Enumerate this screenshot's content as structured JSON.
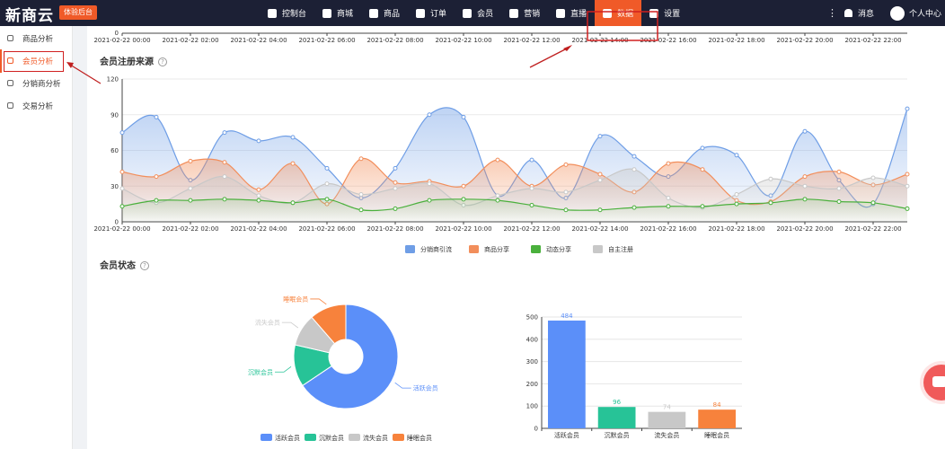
{
  "header": {
    "logo": "新商云",
    "tryout": "体验后台",
    "nav": [
      {
        "label": "控制台",
        "icon": "monitor-icon"
      },
      {
        "label": "商城",
        "icon": "shop-icon"
      },
      {
        "label": "商品",
        "icon": "image-icon"
      },
      {
        "label": "订单",
        "icon": "order-icon"
      },
      {
        "label": "会员",
        "icon": "user-icon"
      },
      {
        "label": "营销",
        "icon": "gift-icon"
      },
      {
        "label": "直播",
        "icon": "tv-icon"
      },
      {
        "label": "数据",
        "icon": "pie-icon"
      },
      {
        "label": "设置",
        "icon": "gear-icon"
      }
    ],
    "active_nav": "数据",
    "more": "⋮",
    "messages": "消息",
    "user_center": "个人中心"
  },
  "sidebar": {
    "items": [
      {
        "label": "商品分析",
        "icon": "box-icon"
      },
      {
        "label": "会员分析",
        "icon": "trend-icon"
      },
      {
        "label": "分销商分析",
        "icon": "clock-icon"
      },
      {
        "label": "交易分析",
        "icon": "target-icon"
      }
    ],
    "active": "会员分析"
  },
  "sections": {
    "register_title": "会员注册来源",
    "status_title": "会员状态",
    "help": "?"
  },
  "colors": {
    "accent": "#f05a28",
    "highlight": "#d02020",
    "blue": "#6f9ee6",
    "orange": "#f28e5b",
    "green": "#4ab03c",
    "gray": "#c8c8c8",
    "teal": "#27c397"
  },
  "top_axis": {
    "labels": [
      "2021-02-22 00:00",
      "2021-02-22 02:00",
      "2021-02-22 04:00",
      "2021-02-22 06:00",
      "2021-02-22 08:00",
      "2021-02-22 10:00",
      "2021-02-22 12:00",
      "2021-02-22 14:00",
      "2021-02-22 16:00",
      "2021-02-22 18:00",
      "2021-02-22 20:00",
      "2021-02-22 22:00"
    ],
    "zero": "0"
  },
  "chart_data": [
    {
      "type": "area",
      "x": [
        "2021-02-22 00:00",
        "2021-02-22 01:00",
        "2021-02-22 02:00",
        "2021-02-22 03:00",
        "2021-02-22 04:00",
        "2021-02-22 05:00",
        "2021-02-22 06:00",
        "2021-02-22 07:00",
        "2021-02-22 08:00",
        "2021-02-22 09:00",
        "2021-02-22 10:00",
        "2021-02-22 11:00",
        "2021-02-22 12:00",
        "2021-02-22 13:00",
        "2021-02-22 14:00",
        "2021-02-22 15:00",
        "2021-02-22 16:00",
        "2021-02-22 17:00",
        "2021-02-22 18:00",
        "2021-02-22 19:00",
        "2021-02-22 20:00",
        "2021-02-22 21:00",
        "2021-02-22 22:00",
        "2021-02-22 23:00"
      ],
      "xticks": [
        "2021-02-22 00:00",
        "2021-02-22 02:00",
        "2021-02-22 04:00",
        "2021-02-22 06:00",
        "2021-02-22 08:00",
        "2021-02-22 10:00",
        "2021-02-22 12:00",
        "2021-02-22 14:00",
        "2021-02-22 16:00",
        "2021-02-22 18:00",
        "2021-02-22 20:00",
        "2021-02-22 22:00"
      ],
      "yticks": [
        0,
        30,
        60,
        90,
        120
      ],
      "ylim": [
        0,
        120
      ],
      "series": [
        {
          "name": "分销商引流",
          "color": "#6f9ee6",
          "values": [
            75,
            88,
            35,
            75,
            68,
            71,
            45,
            20,
            45,
            90,
            88,
            22,
            52,
            20,
            72,
            55,
            38,
            62,
            56,
            22,
            76,
            35,
            15,
            95
          ]
        },
        {
          "name": "商品分享",
          "color": "#f28e5b",
          "values": [
            42,
            38,
            51,
            50,
            27,
            49,
            15,
            53,
            33,
            34,
            30,
            52,
            30,
            48,
            40,
            25,
            49,
            44,
            18,
            17,
            38,
            42,
            31,
            40
          ]
        },
        {
          "name": "动态分享",
          "color": "#4ab03c",
          "values": [
            13,
            18,
            18,
            19,
            18,
            16,
            19,
            10,
            11,
            18,
            19,
            18,
            14,
            10,
            10,
            12,
            13,
            13,
            15,
            16,
            19,
            17,
            16,
            11
          ]
        },
        {
          "name": "自主注册",
          "color": "#c8c8c8",
          "values": [
            28,
            16,
            28,
            38,
            22,
            16,
            32,
            23,
            28,
            32,
            14,
            22,
            28,
            25,
            35,
            44,
            20,
            12,
            23,
            36,
            30,
            28,
            37,
            30
          ]
        }
      ],
      "legend": "bottom"
    },
    {
      "type": "pie",
      "donut": true,
      "labels": [
        "活跃会员",
        "沉默会员",
        "流失会员",
        "睡眠会员"
      ],
      "values": [
        484,
        96,
        74,
        84
      ],
      "colors": [
        "#5b8ff9",
        "#27c397",
        "#c8c8c8",
        "#f7823c"
      ],
      "legend": "bottom"
    },
    {
      "type": "bar",
      "categories": [
        "活跃会员",
        "沉默会员",
        "流失会员",
        "睡眠会员"
      ],
      "values": [
        484,
        96,
        74,
        84
      ],
      "colors": [
        "#5b8ff9",
        "#27c397",
        "#c8c8c8",
        "#f7823c"
      ],
      "yticks": [
        0,
        100,
        200,
        300,
        400,
        500
      ],
      "ylim": [
        0,
        500
      ]
    }
  ]
}
